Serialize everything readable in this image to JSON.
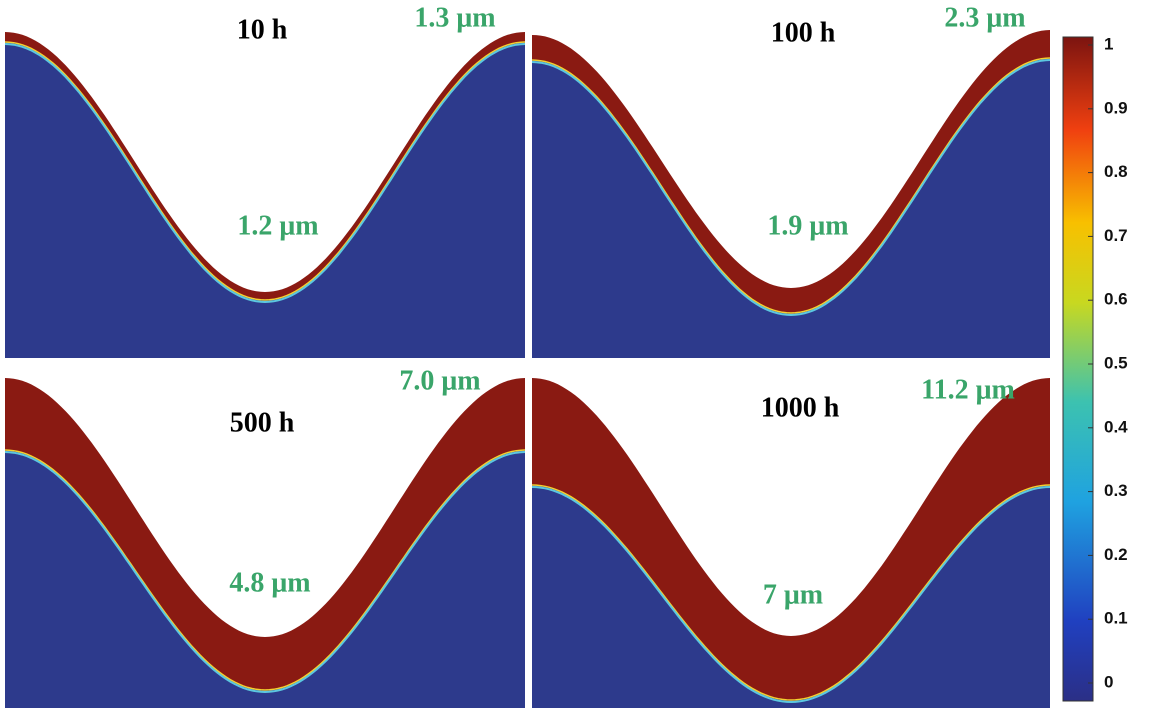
{
  "panels": [
    {
      "time": "10 h",
      "peak_thickness": "1.3 μm",
      "valley_thickness": "1.2 μm"
    },
    {
      "time": "100 h",
      "peak_thickness": "2.3 μm",
      "valley_thickness": "1.9 μm"
    },
    {
      "time": "500 h",
      "peak_thickness": "7.0 μm",
      "valley_thickness": "4.8 μm"
    },
    {
      "time": "1000 h",
      "peak_thickness": "11.2 μm",
      "valley_thickness": "7 μm"
    }
  ],
  "colorbar": {
    "lim": [
      0,
      1
    ],
    "ticks": [
      1,
      0.9,
      0.8,
      0.7,
      0.6,
      0.5,
      0.4,
      0.3,
      0.2,
      0.1,
      0
    ]
  }
}
